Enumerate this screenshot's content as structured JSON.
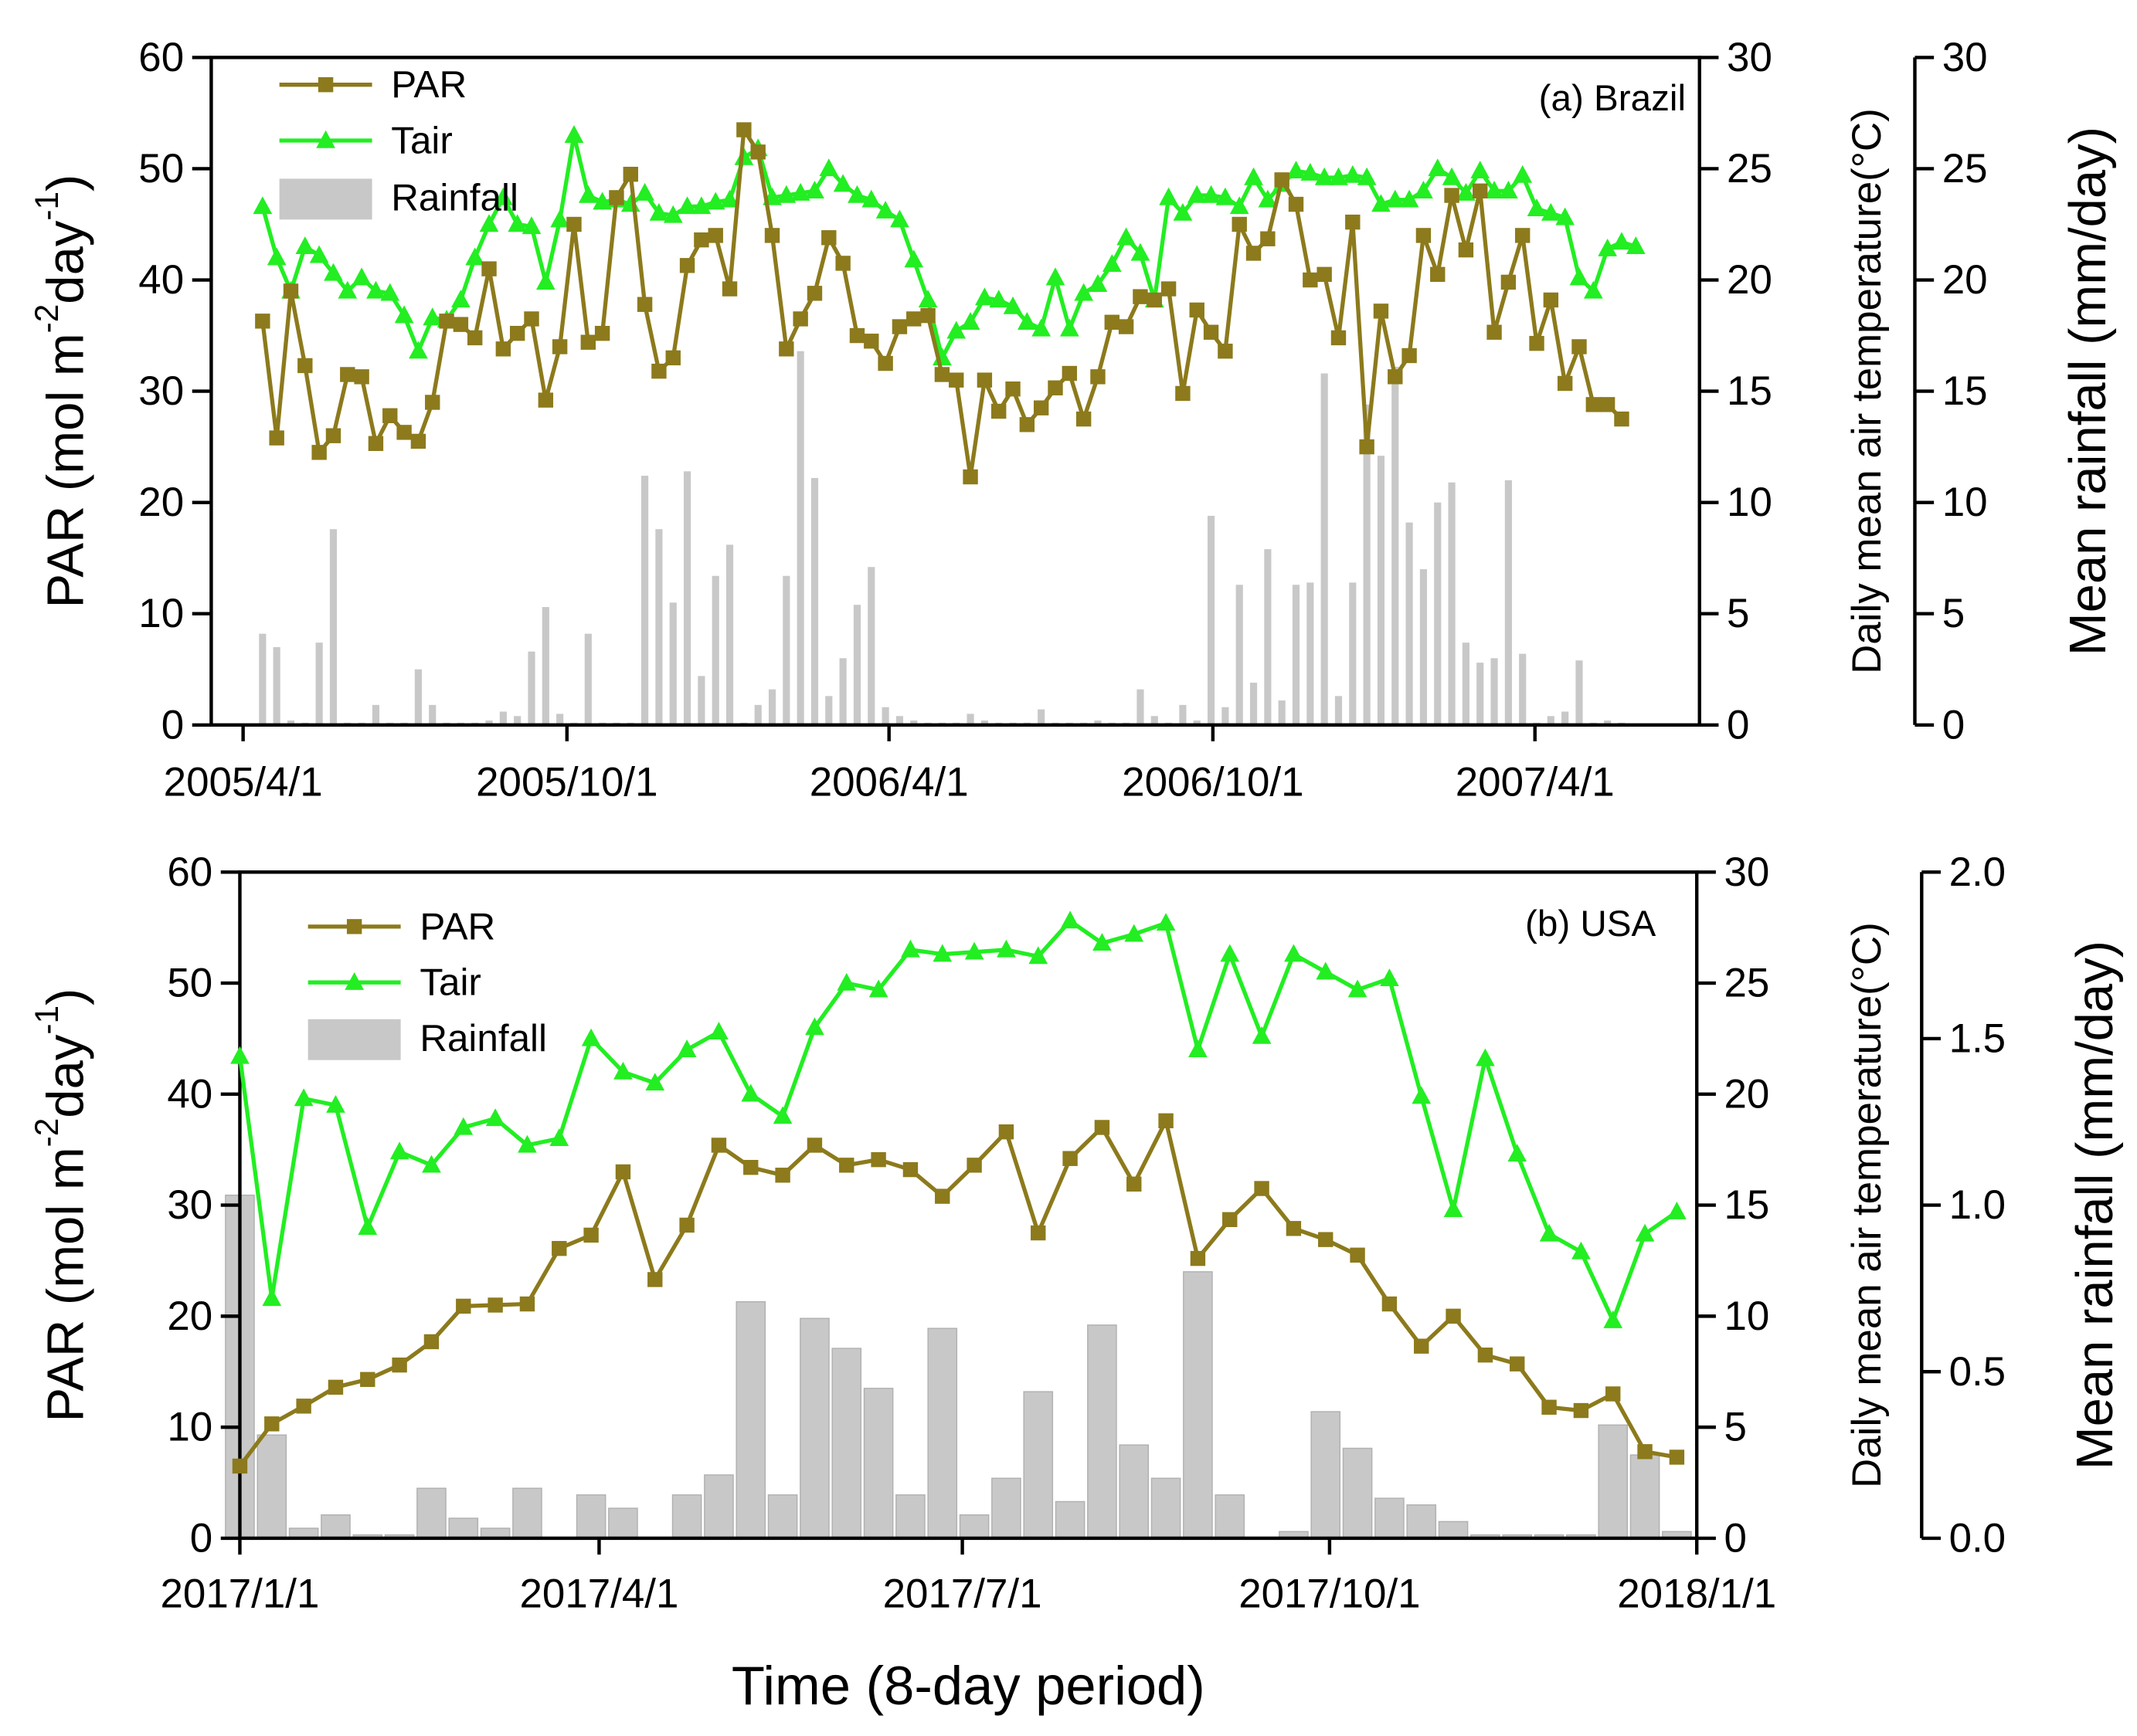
{
  "chart_data": [
    {
      "type": "combo",
      "annotation": "(a) Brazil",
      "ylabel": [
        "PAR (mol m",
        "-2",
        "day",
        "-1",
        ")"
      ],
      "y2label": "Daily mean air temperature(°C)",
      "y3label": "Mean rainfall (mm/day)",
      "xlim": [
        "2005/3/14",
        "2007/7/3"
      ],
      "xticks": [
        "2005/4/1",
        "2005/10/1",
        "2006/4/1",
        "2006/10/1",
        "2007/4/1"
      ],
      "ylim": [
        0,
        60
      ],
      "yticks": [
        0,
        10,
        20,
        30,
        40,
        50,
        60
      ],
      "y2lim": [
        0,
        30
      ],
      "y2ticks": [
        0,
        5,
        10,
        15,
        20,
        25,
        30
      ],
      "y3lim": [
        0,
        30
      ],
      "y3ticks": [
        0,
        5,
        10,
        15,
        20,
        25,
        30
      ],
      "grid": false,
      "legend": "upper left",
      "x": [
        "2005/4/12",
        "2005/4/20",
        "2005/4/28",
        "2005/5/6",
        "2005/5/14",
        "2005/5/22",
        "2005/5/30",
        "2005/6/7",
        "2005/6/15",
        "2005/6/23",
        "2005/7/1",
        "2005/7/9",
        "2005/7/17",
        "2005/7/25",
        "2005/8/2",
        "2005/8/10",
        "2005/8/18",
        "2005/8/26",
        "2005/9/3",
        "2005/9/11",
        "2005/9/19",
        "2005/9/27",
        "2005/10/5",
        "2005/10/13",
        "2005/10/21",
        "2005/10/29",
        "2005/11/6",
        "2005/11/14",
        "2005/11/22",
        "2005/11/30",
        "2005/12/8",
        "2005/12/16",
        "2005/12/24",
        "2006/1/1",
        "2006/1/9",
        "2006/1/17",
        "2006/1/25",
        "2006/2/2",
        "2006/2/10",
        "2006/2/18",
        "2006/2/26",
        "2006/3/6",
        "2006/3/14",
        "2006/3/22",
        "2006/3/30",
        "2006/4/7",
        "2006/4/15",
        "2006/4/23",
        "2006/5/1",
        "2006/5/9",
        "2006/5/17",
        "2006/5/25",
        "2006/6/2",
        "2006/6/10",
        "2006/6/18",
        "2006/6/26",
        "2006/7/4",
        "2006/7/12",
        "2006/7/20",
        "2006/7/28",
        "2006/8/5",
        "2006/8/13",
        "2006/8/21",
        "2006/8/29",
        "2006/9/6",
        "2006/9/14",
        "2006/9/22",
        "2006/9/30",
        "2006/10/8",
        "2006/10/16",
        "2006/10/24",
        "2006/11/1",
        "2006/11/9",
        "2006/11/17",
        "2006/11/25",
        "2006/12/3",
        "2006/12/11",
        "2006/12/19",
        "2006/12/27",
        "2007/1/4",
        "2007/1/12",
        "2007/1/20",
        "2007/1/28",
        "2007/2/5",
        "2007/2/13",
        "2007/2/21",
        "2007/3/1",
        "2007/3/9",
        "2007/3/17",
        "2007/3/25",
        "2007/4/2",
        "2007/4/10",
        "2007/4/18",
        "2007/4/26",
        "2007/5/4",
        "2007/5/12",
        "2007/5/20",
        "2007/5/28"
      ],
      "series": [
        {
          "name": "Rainfall",
          "type": "bar",
          "axis": "y3",
          "color": "#c8c8c8",
          "values": [
            4.1,
            3.5,
            0.2,
            0.1,
            3.7,
            8.8,
            0.1,
            0.1,
            0.9,
            0.1,
            0.1,
            2.5,
            0.9,
            0.1,
            0.1,
            0.1,
            0.2,
            0.6,
            0.4,
            3.3,
            5.3,
            0.5,
            0.1,
            4.1,
            0.1,
            0.1,
            0.1,
            11.2,
            8.8,
            5.5,
            11.4,
            2.2,
            6.7,
            8.1,
            0.1,
            0.9,
            1.6,
            6.7,
            16.8,
            11.1,
            1.3,
            3,
            5.4,
            7.1,
            0.8,
            0.4,
            0.2,
            0.1,
            0.1,
            0.1,
            0.5,
            0.2,
            0.1,
            0.1,
            0.1,
            0.7,
            0.1,
            0.1,
            0.1,
            0.2,
            0.1,
            0.1,
            1.6,
            0.4,
            0.1,
            0.9,
            0.2,
            9.4,
            0.8,
            6.3,
            1.9,
            7.9,
            1.1,
            6.3,
            6.4,
            15.8,
            1.3,
            6.4,
            14.4,
            12.1,
            16.1,
            9.1,
            7,
            10,
            10.9,
            3.7,
            2.8,
            3,
            11,
            3.2,
            0.1,
            0.4,
            0.6,
            2.9,
            0.1,
            0.2,
            0.1,
            null
          ]
        },
        {
          "name": "Tair",
          "type": "line",
          "axis": "y2",
          "color": "#22ee22",
          "marker": "triangle",
          "values": [
            23.3,
            21,
            19.5,
            21.5,
            21.1,
            20.3,
            19.5,
            20.1,
            19.5,
            19.4,
            18.4,
            16.8,
            18.3,
            18.2,
            19.1,
            21,
            22.5,
            23.7,
            22.5,
            22.4,
            19.9,
            22.7,
            26.5,
            23.8,
            23.5,
            23.6,
            23.4,
            23.9,
            23,
            22.9,
            23.3,
            23.3,
            23.5,
            23.6,
            25.5,
            25.9,
            23.7,
            23.8,
            23.9,
            24,
            25,
            24.3,
            23.8,
            23.6,
            23.1,
            22.7,
            20.9,
            19.1,
            16.5,
            17.7,
            18.1,
            19.2,
            19.1,
            18.8,
            18.1,
            17.8,
            20.1,
            17.8,
            19.4,
            19.8,
            20.7,
            21.9,
            21.2,
            19.1,
            23.7,
            23,
            23.8,
            23.8,
            23.7,
            23.3,
            24.6,
            23.6,
            24.3,
            24.9,
            24.8,
            24.6,
            24.6,
            24.7,
            24.6,
            23.4,
            23.6,
            23.6,
            24,
            25,
            24.6,
            23.9,
            24.9,
            24,
            24,
            24.7,
            23.2,
            23,
            22.8,
            20.1,
            19.5,
            21.4,
            21.7,
            21.5
          ]
        },
        {
          "name": "PAR",
          "type": "line",
          "axis": "y",
          "color": "#8c7a1c",
          "marker": "square",
          "values": [
            36.3,
            25.8,
            39,
            32.3,
            24.5,
            26,
            31.5,
            31.3,
            25.3,
            27.8,
            26.3,
            25.5,
            29,
            36.3,
            36,
            34.8,
            41,
            33.8,
            35.2,
            36.5,
            29.2,
            34,
            45,
            34.4,
            35.2,
            47.4,
            49.5,
            37.8,
            31.8,
            33,
            41.3,
            43.6,
            44,
            39.2,
            53.5,
            51.5,
            44,
            33.8,
            36.5,
            38.8,
            43.8,
            41.5,
            35,
            34.5,
            32.5,
            35.8,
            36.5,
            36.8,
            31.5,
            31,
            22.3,
            31,
            28.2,
            30.2,
            27,
            28.5,
            30.3,
            31.6,
            27.5,
            31.3,
            36.2,
            35.8,
            38.5,
            38.2,
            39.2,
            29.8,
            37.3,
            35.3,
            33.6,
            45,
            42.4,
            43.7,
            49,
            46.8,
            40,
            40.5,
            34.8,
            45.2,
            25,
            37.2,
            31.3,
            33.2,
            44,
            40.5,
            47.6,
            42.7,
            48,
            35.3,
            39.8,
            44,
            34.3,
            38.2,
            30.7,
            34,
            28.8,
            28.8,
            27.5,
            null
          ]
        }
      ]
    },
    {
      "type": "combo",
      "annotation": "(b) USA",
      "ylabel": [
        "PAR (mol m",
        "-2",
        "day",
        "-1",
        ")"
      ],
      "y2label": "Daily mean air temperature(°C)",
      "y3label": "Mean rainfall (mm/day)",
      "xlabel": "Time (8-day period)",
      "xlim": [
        "2017/1/1",
        "2018/1/1"
      ],
      "xticks": [
        "2017/1/1",
        "2017/4/1",
        "2017/7/1",
        "2017/10/1",
        "2018/1/1"
      ],
      "ylim": [
        0,
        60
      ],
      "yticks": [
        0,
        10,
        20,
        30,
        40,
        50,
        60
      ],
      "y2lim": [
        0,
        30
      ],
      "y2ticks": [
        0,
        5,
        10,
        15,
        20,
        25,
        30
      ],
      "y3lim": [
        0,
        2
      ],
      "y3ticks": [
        {
          "value": 0,
          "label": "0.0"
        },
        {
          "value": 0.5,
          "label": "0.5"
        },
        {
          "value": 1,
          "label": "1.0"
        },
        {
          "value": 1.5,
          "label": "1.5"
        },
        {
          "value": 2,
          "label": "2.0"
        }
      ],
      "grid": false,
      "legend": "upper left",
      "x": [
        "2017/1/1",
        "2017/1/9",
        "2017/1/17",
        "2017/1/25",
        "2017/2/2",
        "2017/2/10",
        "2017/2/18",
        "2017/2/26",
        "2017/3/6",
        "2017/3/14",
        "2017/3/22",
        "2017/3/30",
        "2017/4/7",
        "2017/4/15",
        "2017/4/23",
        "2017/5/1",
        "2017/5/9",
        "2017/5/17",
        "2017/5/25",
        "2017/6/2",
        "2017/6/10",
        "2017/6/18",
        "2017/6/26",
        "2017/7/4",
        "2017/7/12",
        "2017/7/20",
        "2017/7/28",
        "2017/8/5",
        "2017/8/13",
        "2017/8/21",
        "2017/8/29",
        "2017/9/6",
        "2017/9/14",
        "2017/9/22",
        "2017/9/30",
        "2017/10/8",
        "2017/10/16",
        "2017/10/24",
        "2017/11/1",
        "2017/11/9",
        "2017/11/17",
        "2017/11/25",
        "2017/12/3",
        "2017/12/11",
        "2017/12/19",
        "2017/12/27"
      ],
      "series": [
        {
          "name": "Rainfall",
          "type": "bar",
          "axis": "y3",
          "color": "#c8c8c8",
          "values": [
            1.03,
            0.31,
            0.03,
            0.07,
            0.01,
            0.01,
            0.15,
            0.06,
            0.03,
            0.15,
            0,
            0.13,
            0.09,
            0,
            0.13,
            0.19,
            0.71,
            0.13,
            0.66,
            0.57,
            0.45,
            0.13,
            0.63,
            0.07,
            0.18,
            0.44,
            0.11,
            0.64,
            0.28,
            0.18,
            0.8,
            0.13,
            0,
            0.02,
            0.38,
            0.27,
            0.12,
            0.1,
            0.05,
            0.01,
            0.01,
            0.01,
            0.01,
            0.34,
            0.25,
            0.02
          ]
        },
        {
          "name": "Tair",
          "type": "line",
          "axis": "y2",
          "color": "#22ee22",
          "marker": "triangle",
          "values": [
            21.7,
            10.8,
            19.8,
            19.5,
            14,
            17.4,
            16.8,
            18.5,
            18.9,
            17.7,
            18,
            22.5,
            21,
            20.5,
            22,
            22.8,
            20,
            19,
            23,
            25,
            24.7,
            26.5,
            26.3,
            26.4,
            26.5,
            26.2,
            27.8,
            26.8,
            27.2,
            27.7,
            22,
            26.3,
            22.6,
            26.3,
            25.5,
            24.7,
            25.2,
            19.9,
            14.8,
            21.6,
            17.3,
            13.7,
            12.9,
            9.8,
            13.7,
            14.7
          ]
        },
        {
          "name": "PAR",
          "type": "line",
          "axis": "y",
          "color": "#8c7a1c",
          "marker": "square",
          "values": [
            6.5,
            10.3,
            11.9,
            13.6,
            14.3,
            15.6,
            17.7,
            20.9,
            21,
            21.1,
            26.1,
            27.3,
            33,
            23.3,
            28.2,
            35.4,
            33.4,
            32.7,
            35.4,
            33.6,
            34.1,
            33.2,
            30.8,
            33.6,
            36.6,
            27.5,
            34.2,
            37,
            31.9,
            37.6,
            25.2,
            28.7,
            31.5,
            27.9,
            26.9,
            25.5,
            21.1,
            17.3,
            20,
            16.5,
            15.7,
            11.8,
            11.5,
            13,
            7.8,
            7.3
          ]
        }
      ]
    }
  ]
}
